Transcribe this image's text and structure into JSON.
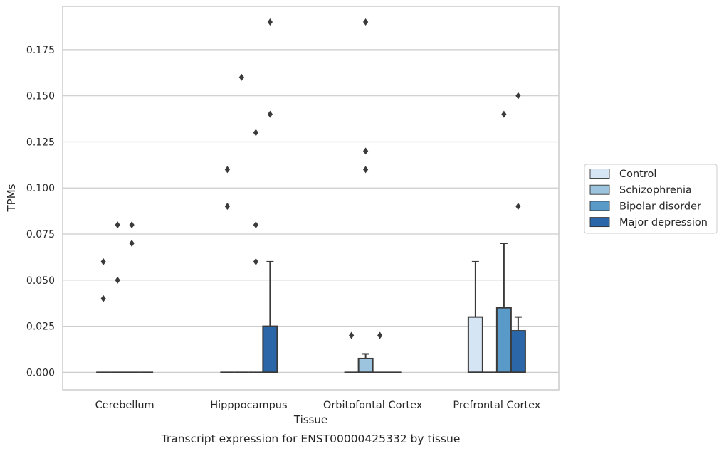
{
  "chart_data": {
    "type": "box",
    "title": "",
    "caption": "Transcript expression for ENST00000425332 by tissue",
    "xlabel": "Tissue",
    "ylabel": "TPMs",
    "ylim": [
      -0.0095,
      0.1985
    ],
    "yticks": [
      "0.000",
      "0.025",
      "0.050",
      "0.075",
      "0.100",
      "0.125",
      "0.150",
      "0.175"
    ],
    "grid": true,
    "legend_position": "right",
    "categories": [
      "Cerebellum",
      "Hipppocampus",
      "Orbitofontal Cortex",
      "Prefrontal Cortex"
    ],
    "series": [
      {
        "name": "Control",
        "color": "#d6e5f4",
        "boxes": [
          {
            "q1": 0,
            "median": 0,
            "q3": 0,
            "whisker_low": 0,
            "whisker_high": 0,
            "outliers": [
              0.06,
              0.04
            ]
          },
          {
            "q1": 0,
            "median": 0,
            "q3": 0,
            "whisker_low": 0,
            "whisker_high": 0,
            "outliers": [
              0.11,
              0.09
            ]
          },
          {
            "q1": 0,
            "median": 0,
            "q3": 0,
            "whisker_low": 0,
            "whisker_high": 0,
            "outliers": [
              0.02
            ]
          },
          {
            "q1": 0,
            "median": 0,
            "q3": 0.03,
            "whisker_low": 0,
            "whisker_high": 0.06,
            "outliers": []
          }
        ]
      },
      {
        "name": "Schizophrenia",
        "color": "#9dc4de",
        "boxes": [
          {
            "q1": 0,
            "median": 0,
            "q3": 0,
            "whisker_low": 0,
            "whisker_high": 0,
            "outliers": [
              0.08,
              0.05
            ]
          },
          {
            "q1": 0,
            "median": 0,
            "q3": 0,
            "whisker_low": 0,
            "whisker_high": 0,
            "outliers": [
              0.16
            ]
          },
          {
            "q1": 0,
            "median": 0,
            "q3": 0.0075,
            "whisker_low": 0,
            "whisker_high": 0.01,
            "outliers": [
              0.19,
              0.12,
              0.11
            ]
          },
          {
            "q1": 0,
            "median": 0,
            "q3": 0,
            "whisker_low": 0,
            "whisker_high": 0,
            "outliers": []
          }
        ]
      },
      {
        "name": "Bipolar disorder",
        "color": "#5a9ac8",
        "boxes": [
          {
            "q1": 0,
            "median": 0,
            "q3": 0,
            "whisker_low": 0,
            "whisker_high": 0,
            "outliers": [
              0.08,
              0.07
            ]
          },
          {
            "q1": 0,
            "median": 0,
            "q3": 0,
            "whisker_low": 0,
            "whisker_high": 0,
            "outliers": [
              0.13,
              0.08,
              0.06
            ]
          },
          {
            "q1": 0,
            "median": 0,
            "q3": 0,
            "whisker_low": 0,
            "whisker_high": 0,
            "outliers": [
              0.02
            ]
          },
          {
            "q1": 0,
            "median": 0,
            "q3": 0.035,
            "whisker_low": 0,
            "whisker_high": 0.07,
            "outliers": [
              0.14
            ]
          }
        ]
      },
      {
        "name": "Major depression",
        "color": "#2a66a8",
        "boxes": [
          {
            "q1": 0,
            "median": 0,
            "q3": 0,
            "whisker_low": 0,
            "whisker_high": 0,
            "outliers": []
          },
          {
            "q1": 0,
            "median": 0,
            "q3": 0.025,
            "whisker_low": 0,
            "whisker_high": 0.06,
            "outliers": [
              0.19,
              0.14
            ]
          },
          {
            "q1": 0,
            "median": 0,
            "q3": 0,
            "whisker_low": 0,
            "whisker_high": 0,
            "outliers": []
          },
          {
            "q1": 0,
            "median": 0,
            "q3": 0.0225,
            "whisker_low": 0,
            "whisker_high": 0.03,
            "outliers": [
              0.15,
              0.09
            ]
          }
        ]
      }
    ]
  }
}
